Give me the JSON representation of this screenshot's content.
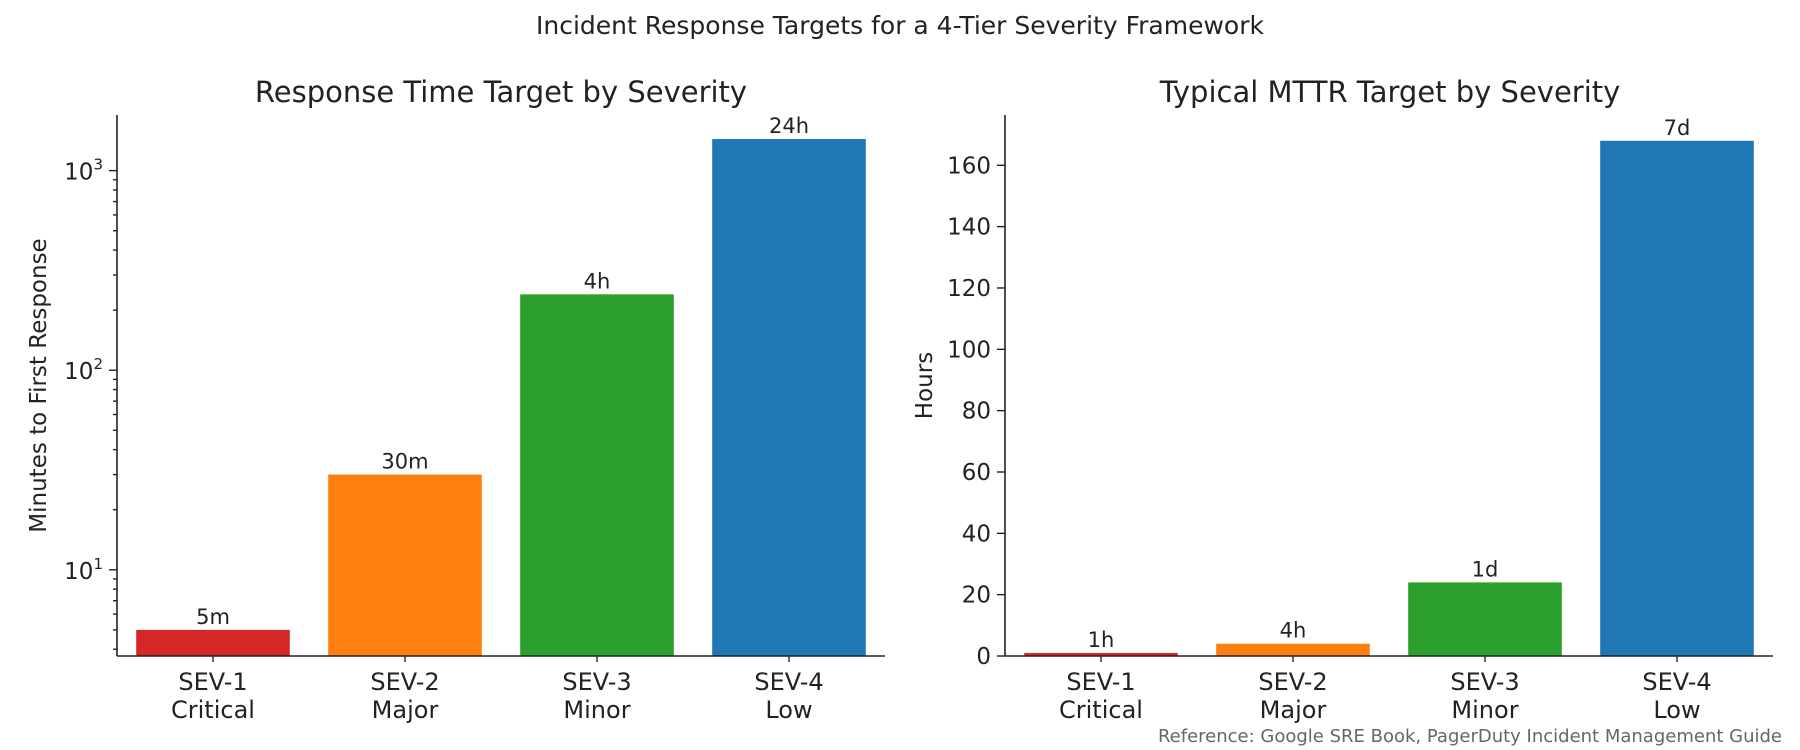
{
  "title": "Incident Response Targets for a 4-Tier Severity Framework",
  "footnote": "Reference: Google SRE Book, PagerDuty Incident Management Guide",
  "chart_data": [
    {
      "type": "bar",
      "title": "Response Time Target by Severity",
      "ylabel": "Minutes to First Response",
      "yscale": "log",
      "ylim": [
        3.7,
        1900
      ],
      "yticks": [
        {
          "value": 10,
          "base": "10",
          "exp": "1"
        },
        {
          "value": 100,
          "base": "10",
          "exp": "2"
        },
        {
          "value": 1000,
          "base": "10",
          "exp": "3"
        }
      ],
      "categories": [
        {
          "line1": "SEV-1",
          "line2": "Critical"
        },
        {
          "line1": "SEV-2",
          "line2": "Major"
        },
        {
          "line1": "SEV-3",
          "line2": "Minor"
        },
        {
          "line1": "SEV-4",
          "line2": "Low"
        }
      ],
      "values": [
        5,
        30,
        240,
        1440
      ],
      "data_labels": [
        "5m",
        "30m",
        "4h",
        "24h"
      ],
      "colors": [
        "#d62728",
        "#ff7f0e",
        "#2ca02c",
        "#1f77b4"
      ],
      "grid": false
    },
    {
      "type": "bar",
      "title": "Typical MTTR Target by Severity",
      "ylabel": "Hours",
      "yscale": "linear",
      "ylim": [
        0,
        176.4
      ],
      "yticks": [
        0,
        20,
        40,
        60,
        80,
        100,
        120,
        140,
        160
      ],
      "categories": [
        {
          "line1": "SEV-1",
          "line2": "Critical"
        },
        {
          "line1": "SEV-2",
          "line2": "Major"
        },
        {
          "line1": "SEV-3",
          "line2": "Minor"
        },
        {
          "line1": "SEV-4",
          "line2": "Low"
        }
      ],
      "values": [
        1,
        4,
        24,
        168
      ],
      "data_labels": [
        "1h",
        "4h",
        "1d",
        "7d"
      ],
      "colors": [
        "#d62728",
        "#ff7f0e",
        "#2ca02c",
        "#1f77b4"
      ],
      "grid": false
    }
  ]
}
